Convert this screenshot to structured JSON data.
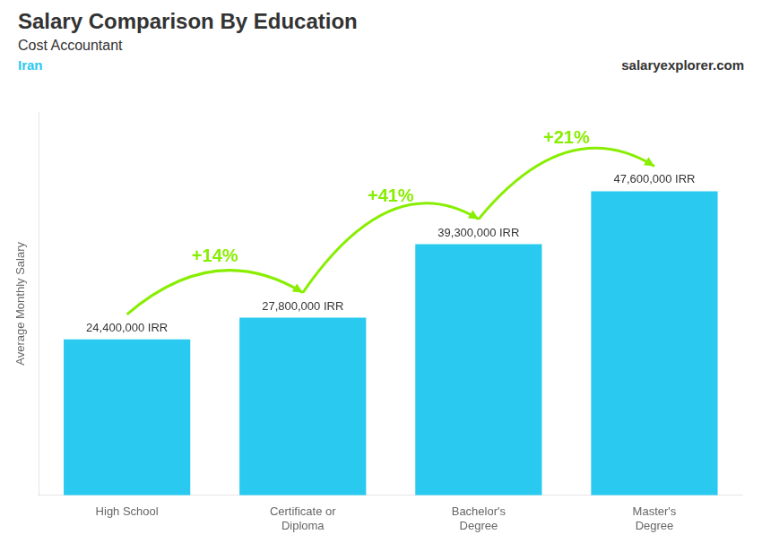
{
  "chart_data": {
    "type": "bar",
    "title": "Salary Comparison By Education",
    "subtitle": "Cost Accountant",
    "ylabel": "Average Monthly Salary",
    "categories": [
      "High School",
      "Certificate or\nDiploma",
      "Bachelor's\nDegree",
      "Master's\nDegree"
    ],
    "values": [
      24400000,
      27800000,
      39300000,
      47600000
    ],
    "value_labels": [
      "24,400,000 IRR",
      "27,800,000 IRR",
      "39,300,000 IRR",
      "47,600,000 IRR"
    ],
    "data_labels": true,
    "color": "#29c9f0",
    "ylim": [
      0,
      60000000
    ],
    "tick_labels": "x",
    "grid": false,
    "annotations": [
      {
        "text": "Iran",
        "color": "#29c9f0"
      },
      {
        "text": "salaryexplorer.com"
      },
      {
        "text": "+14%",
        "from": "High School",
        "to": "Certificate or\nDiploma",
        "color": "#88ee00"
      },
      {
        "text": "+41%",
        "from": "Certificate or\nDiploma",
        "to": "Bachelor's\nDegree",
        "color": "#88ee00"
      },
      {
        "text": "+21%",
        "from": "Bachelor's\nDegree",
        "to": "Master's\nDegree",
        "color": "#88ee00"
      }
    ]
  }
}
